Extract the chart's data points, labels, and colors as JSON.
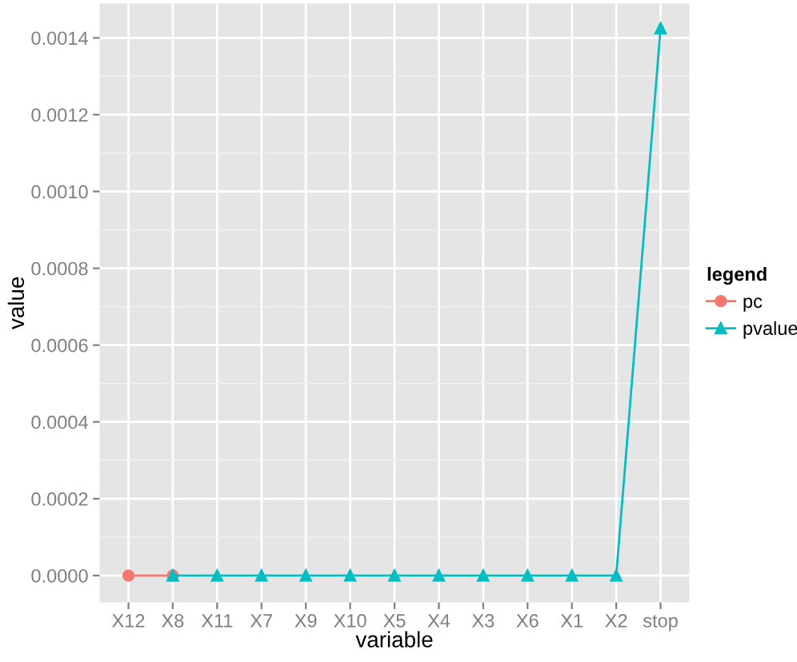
{
  "chart_data": {
    "type": "line",
    "xlabel": "variable",
    "ylabel": "value",
    "legend_title": "legend",
    "categories": [
      "X12",
      "X8",
      "X11",
      "X7",
      "X9",
      "X10",
      "X5",
      "X4",
      "X3",
      "X6",
      "X1",
      "X2",
      "stop"
    ],
    "series": [
      {
        "name": "pc",
        "color": "#f8766d",
        "marker": "circle",
        "values": [
          0,
          0,
          null,
          null,
          null,
          null,
          null,
          null,
          null,
          null,
          null,
          null,
          null
        ]
      },
      {
        "name": "pvalue",
        "color": "#00bfc4",
        "marker": "triangle",
        "values": [
          null,
          0,
          0,
          0,
          0,
          0,
          0,
          0,
          0,
          0,
          0,
          0,
          0.001425
        ]
      }
    ],
    "ylim": [
      -7e-05,
      0.00149
    ],
    "yticks": [
      {
        "value": 0,
        "label": "0.0000"
      },
      {
        "value": 0.0002,
        "label": "0.0002"
      },
      {
        "value": 0.0004,
        "label": "0.0004"
      },
      {
        "value": 0.0006,
        "label": "0.0006"
      },
      {
        "value": 0.0008,
        "label": "0.0008"
      },
      {
        "value": 0.001,
        "label": "0.0010"
      },
      {
        "value": 0.0012,
        "label": "0.0012"
      },
      {
        "value": 0.0014,
        "label": "0.0014"
      }
    ],
    "grid": true,
    "legend": "right",
    "line_style": "solid"
  }
}
